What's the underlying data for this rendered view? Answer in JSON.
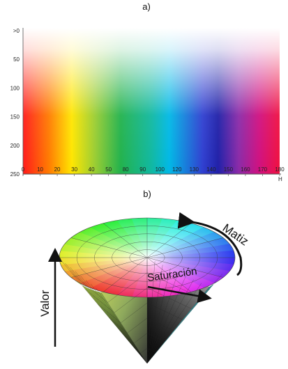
{
  "panels": {
    "a": "a)",
    "b": "b)"
  },
  "chart_data": {
    "type": "heatmap",
    "title": "",
    "x_ticks": [
      "0",
      "10",
      "20",
      "30",
      "40",
      "50",
      "80",
      "90",
      "100",
      "120",
      "130",
      "140",
      "150",
      "160",
      "170",
      "180"
    ],
    "y_ticks": [
      ">0",
      "50",
      "100",
      "150",
      "200",
      "250"
    ],
    "x_axis_label": "H",
    "colors": {
      "red": "#ff1a1a",
      "orange": "#ff7a00",
      "yellow": "#ffe600",
      "green": "#22b24c",
      "cyan": "#00b8e6",
      "blue": "#2020c0",
      "magenta": "#e0107a"
    }
  },
  "cone": {
    "matiz": "Matiz",
    "saturacion": "Saturación",
    "valor": "Valor"
  }
}
